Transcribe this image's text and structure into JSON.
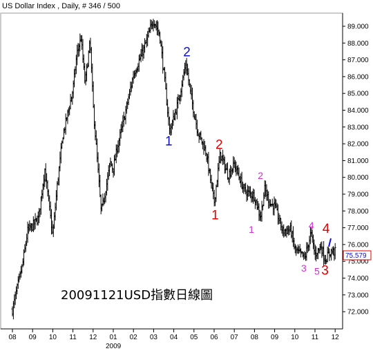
{
  "chart_data": {
    "type": "ohlc",
    "title": "US Dollar Index , Daily, # 346 / 500",
    "annotation": "20091121USD指數日線圖",
    "year_label": "2009",
    "last_price": "75.579",
    "ylim": [
      71.4,
      89.8
    ],
    "y_ticks": [
      "72.000",
      "73.000",
      "74.000",
      "75.000",
      "76.000",
      "77.000",
      "78.000",
      "79.000",
      "80.000",
      "81.000",
      "82.000",
      "83.000",
      "84.000",
      "85.000",
      "86.000",
      "87.000",
      "88.000",
      "89.000"
    ],
    "x_ticks": [
      "08",
      "09",
      "10",
      "11",
      "12",
      "01",
      "02",
      "03",
      "04",
      "05",
      "06",
      "07",
      "08",
      "09",
      "10",
      "11",
      "12"
    ],
    "x_tick_index": [
      0,
      1,
      2,
      3,
      4,
      5,
      6,
      7,
      8,
      9,
      10,
      11,
      12,
      13,
      14,
      15,
      16
    ],
    "series": [
      {
        "x": [
          0,
          0.5,
          0.75,
          1,
          1.3,
          1.6,
          2,
          2.2,
          2.5,
          3,
          3.2,
          3.4,
          3.6,
          3.85,
          4,
          4.4,
          4.7,
          4.85,
          5,
          5.2,
          5.5,
          6,
          6.5,
          7,
          7.3,
          7.55,
          7.8,
          8.2,
          8.6,
          8.9,
          9.2,
          9.6,
          10,
          10.3,
          10.7,
          11,
          11.5,
          12,
          12.3,
          12.5,
          12.8,
          13,
          13.4,
          13.8,
          14,
          14.5,
          14.8,
          15,
          15.3,
          15.5,
          15.8,
          16
        ],
        "y": [
          72.1,
          74.8,
          76.8,
          77.1,
          77.6,
          80.5,
          76.5,
          79.3,
          82.5,
          85.2,
          87.4,
          88.3,
          85.6,
          88.1,
          84.3,
          77.9,
          79.8,
          80.9,
          80.5,
          81.8,
          83.3,
          86.1,
          87.6,
          89.4,
          88.5,
          85.7,
          82.7,
          84.4,
          86.8,
          84.5,
          82.7,
          81.5,
          78.5,
          81.4,
          80.1,
          80.8,
          79.2,
          78.9,
          77.6,
          79.3,
          78.4,
          78.3,
          76.8,
          76.9,
          75.7,
          75.2,
          76.7,
          75.4,
          75.9,
          75.1,
          75.6,
          75.58
        ]
      }
    ],
    "wave_labels": [
      {
        "text": "1",
        "x": 7.75,
        "y": 81.9,
        "color": "#1010c8"
      },
      {
        "text": "2",
        "x": 8.65,
        "y": 87.2,
        "color": "#1010c8"
      },
      {
        "text": "2",
        "x": 10.25,
        "y": 81.7,
        "color": "#e00000"
      },
      {
        "text": "1",
        "x": 10.05,
        "y": 77.5,
        "color": "#e00000"
      },
      {
        "text": "2",
        "x": 12.3,
        "y": 79.9,
        "color": "#d030d0"
      },
      {
        "text": "1",
        "x": 11.85,
        "y": 76.7,
        "color": "#d030d0"
      },
      {
        "text": "4",
        "x": 14.82,
        "y": 76.95,
        "color": "#d030d0"
      },
      {
        "text": "4",
        "x": 15.55,
        "y": 76.7,
        "color": "#e00000"
      },
      {
        "text": "3",
        "x": 14.45,
        "y": 74.4,
        "color": "#d030d0"
      },
      {
        "text": "5",
        "x": 15.1,
        "y": 74.2,
        "color": "#d030d0"
      },
      {
        "text": "3",
        "x": 15.5,
        "y": 74.2,
        "color": "#e00000"
      }
    ]
  }
}
